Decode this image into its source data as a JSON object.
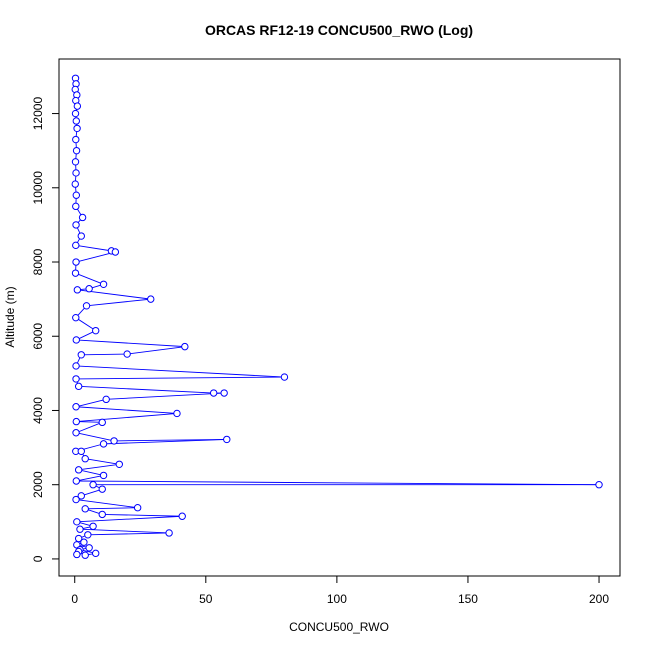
{
  "chart_data": {
    "type": "line",
    "title": "ORCAS RF12-19 CONCU500_RWO (Log)",
    "xlabel": "CONCU500_RWO",
    "ylabel": "Altitude (m)",
    "xlim": [
      -6,
      208
    ],
    "ylim": [
      -460,
      13470
    ],
    "xticks": [
      0,
      50,
      100,
      150,
      200
    ],
    "yticks": [
      0,
      2000,
      4000,
      6000,
      8000,
      10000,
      12000
    ],
    "grid": false,
    "legend": "none",
    "marker": "open-circle",
    "color": "#0000ff",
    "series": [
      {
        "values": [
          {
            "x": 0.3,
            "y": 12950
          },
          {
            "x": 0.5,
            "y": 12800
          },
          {
            "x": 0.2,
            "y": 12650
          },
          {
            "x": 0.8,
            "y": 12500
          },
          {
            "x": 0.4,
            "y": 12350
          },
          {
            "x": 1.0,
            "y": 12200
          },
          {
            "x": 0.3,
            "y": 12000
          },
          {
            "x": 0.6,
            "y": 11800
          },
          {
            "x": 0.9,
            "y": 11600
          },
          {
            "x": 0.4,
            "y": 11300
          },
          {
            "x": 0.7,
            "y": 11000
          },
          {
            "x": 0.3,
            "y": 10700
          },
          {
            "x": 0.5,
            "y": 10400
          },
          {
            "x": 0.2,
            "y": 10100
          },
          {
            "x": 0.6,
            "y": 9800
          },
          {
            "x": 0.4,
            "y": 9500
          },
          {
            "x": 3.0,
            "y": 9200
          },
          {
            "x": 0.5,
            "y": 9000
          },
          {
            "x": 2.5,
            "y": 8700
          },
          {
            "x": 0.4,
            "y": 8450
          },
          {
            "x": 14.0,
            "y": 8300
          },
          {
            "x": 15.5,
            "y": 8270
          },
          {
            "x": 0.5,
            "y": 8000
          },
          {
            "x": 0.3,
            "y": 7700
          },
          {
            "x": 11.0,
            "y": 7400
          },
          {
            "x": 5.5,
            "y": 7280
          },
          {
            "x": 1.0,
            "y": 7250
          },
          {
            "x": 29.0,
            "y": 7000
          },
          {
            "x": 4.5,
            "y": 6820
          },
          {
            "x": 0.4,
            "y": 6500
          },
          {
            "x": 8.0,
            "y": 6150
          },
          {
            "x": 0.6,
            "y": 5900
          },
          {
            "x": 42.0,
            "y": 5720
          },
          {
            "x": 20.0,
            "y": 5520
          },
          {
            "x": 2.5,
            "y": 5500
          },
          {
            "x": 0.5,
            "y": 5200
          },
          {
            "x": 80.0,
            "y": 4900
          },
          {
            "x": 0.5,
            "y": 4850
          },
          {
            "x": 1.5,
            "y": 4650
          },
          {
            "x": 53.0,
            "y": 4470
          },
          {
            "x": 57.0,
            "y": 4470
          },
          {
            "x": 12.0,
            "y": 4300
          },
          {
            "x": 0.5,
            "y": 4100
          },
          {
            "x": 39.0,
            "y": 3920
          },
          {
            "x": 0.6,
            "y": 3700
          },
          {
            "x": 10.5,
            "y": 3680
          },
          {
            "x": 0.5,
            "y": 3400
          },
          {
            "x": 15.0,
            "y": 3180
          },
          {
            "x": 58.0,
            "y": 3220
          },
          {
            "x": 11.0,
            "y": 3100
          },
          {
            "x": 0.4,
            "y": 2900
          },
          {
            "x": 2.5,
            "y": 2900
          },
          {
            "x": 4.0,
            "y": 2700
          },
          {
            "x": 17.0,
            "y": 2550
          },
          {
            "x": 1.5,
            "y": 2400
          },
          {
            "x": 11.0,
            "y": 2250
          },
          {
            "x": 0.6,
            "y": 2100
          },
          {
            "x": 200.0,
            "y": 2000
          },
          {
            "x": 7.0,
            "y": 2000
          },
          {
            "x": 10.5,
            "y": 1880
          },
          {
            "x": 2.5,
            "y": 1700
          },
          {
            "x": 0.5,
            "y": 1600
          },
          {
            "x": 24.0,
            "y": 1380
          },
          {
            "x": 4.0,
            "y": 1350
          },
          {
            "x": 10.5,
            "y": 1200
          },
          {
            "x": 41.0,
            "y": 1150
          },
          {
            "x": 0.8,
            "y": 1000
          },
          {
            "x": 7.0,
            "y": 880
          },
          {
            "x": 2.0,
            "y": 800
          },
          {
            "x": 36.0,
            "y": 700
          },
          {
            "x": 5.0,
            "y": 650
          },
          {
            "x": 1.5,
            "y": 550
          },
          {
            "x": 3.5,
            "y": 450
          },
          {
            "x": 0.8,
            "y": 380
          },
          {
            "x": 5.5,
            "y": 300
          },
          {
            "x": 2.0,
            "y": 250
          },
          {
            "x": 8.0,
            "y": 150
          },
          {
            "x": 4.0,
            "y": 100
          },
          {
            "x": 1.5,
            "y": 200
          },
          {
            "x": 0.8,
            "y": 120
          }
        ]
      }
    ]
  }
}
